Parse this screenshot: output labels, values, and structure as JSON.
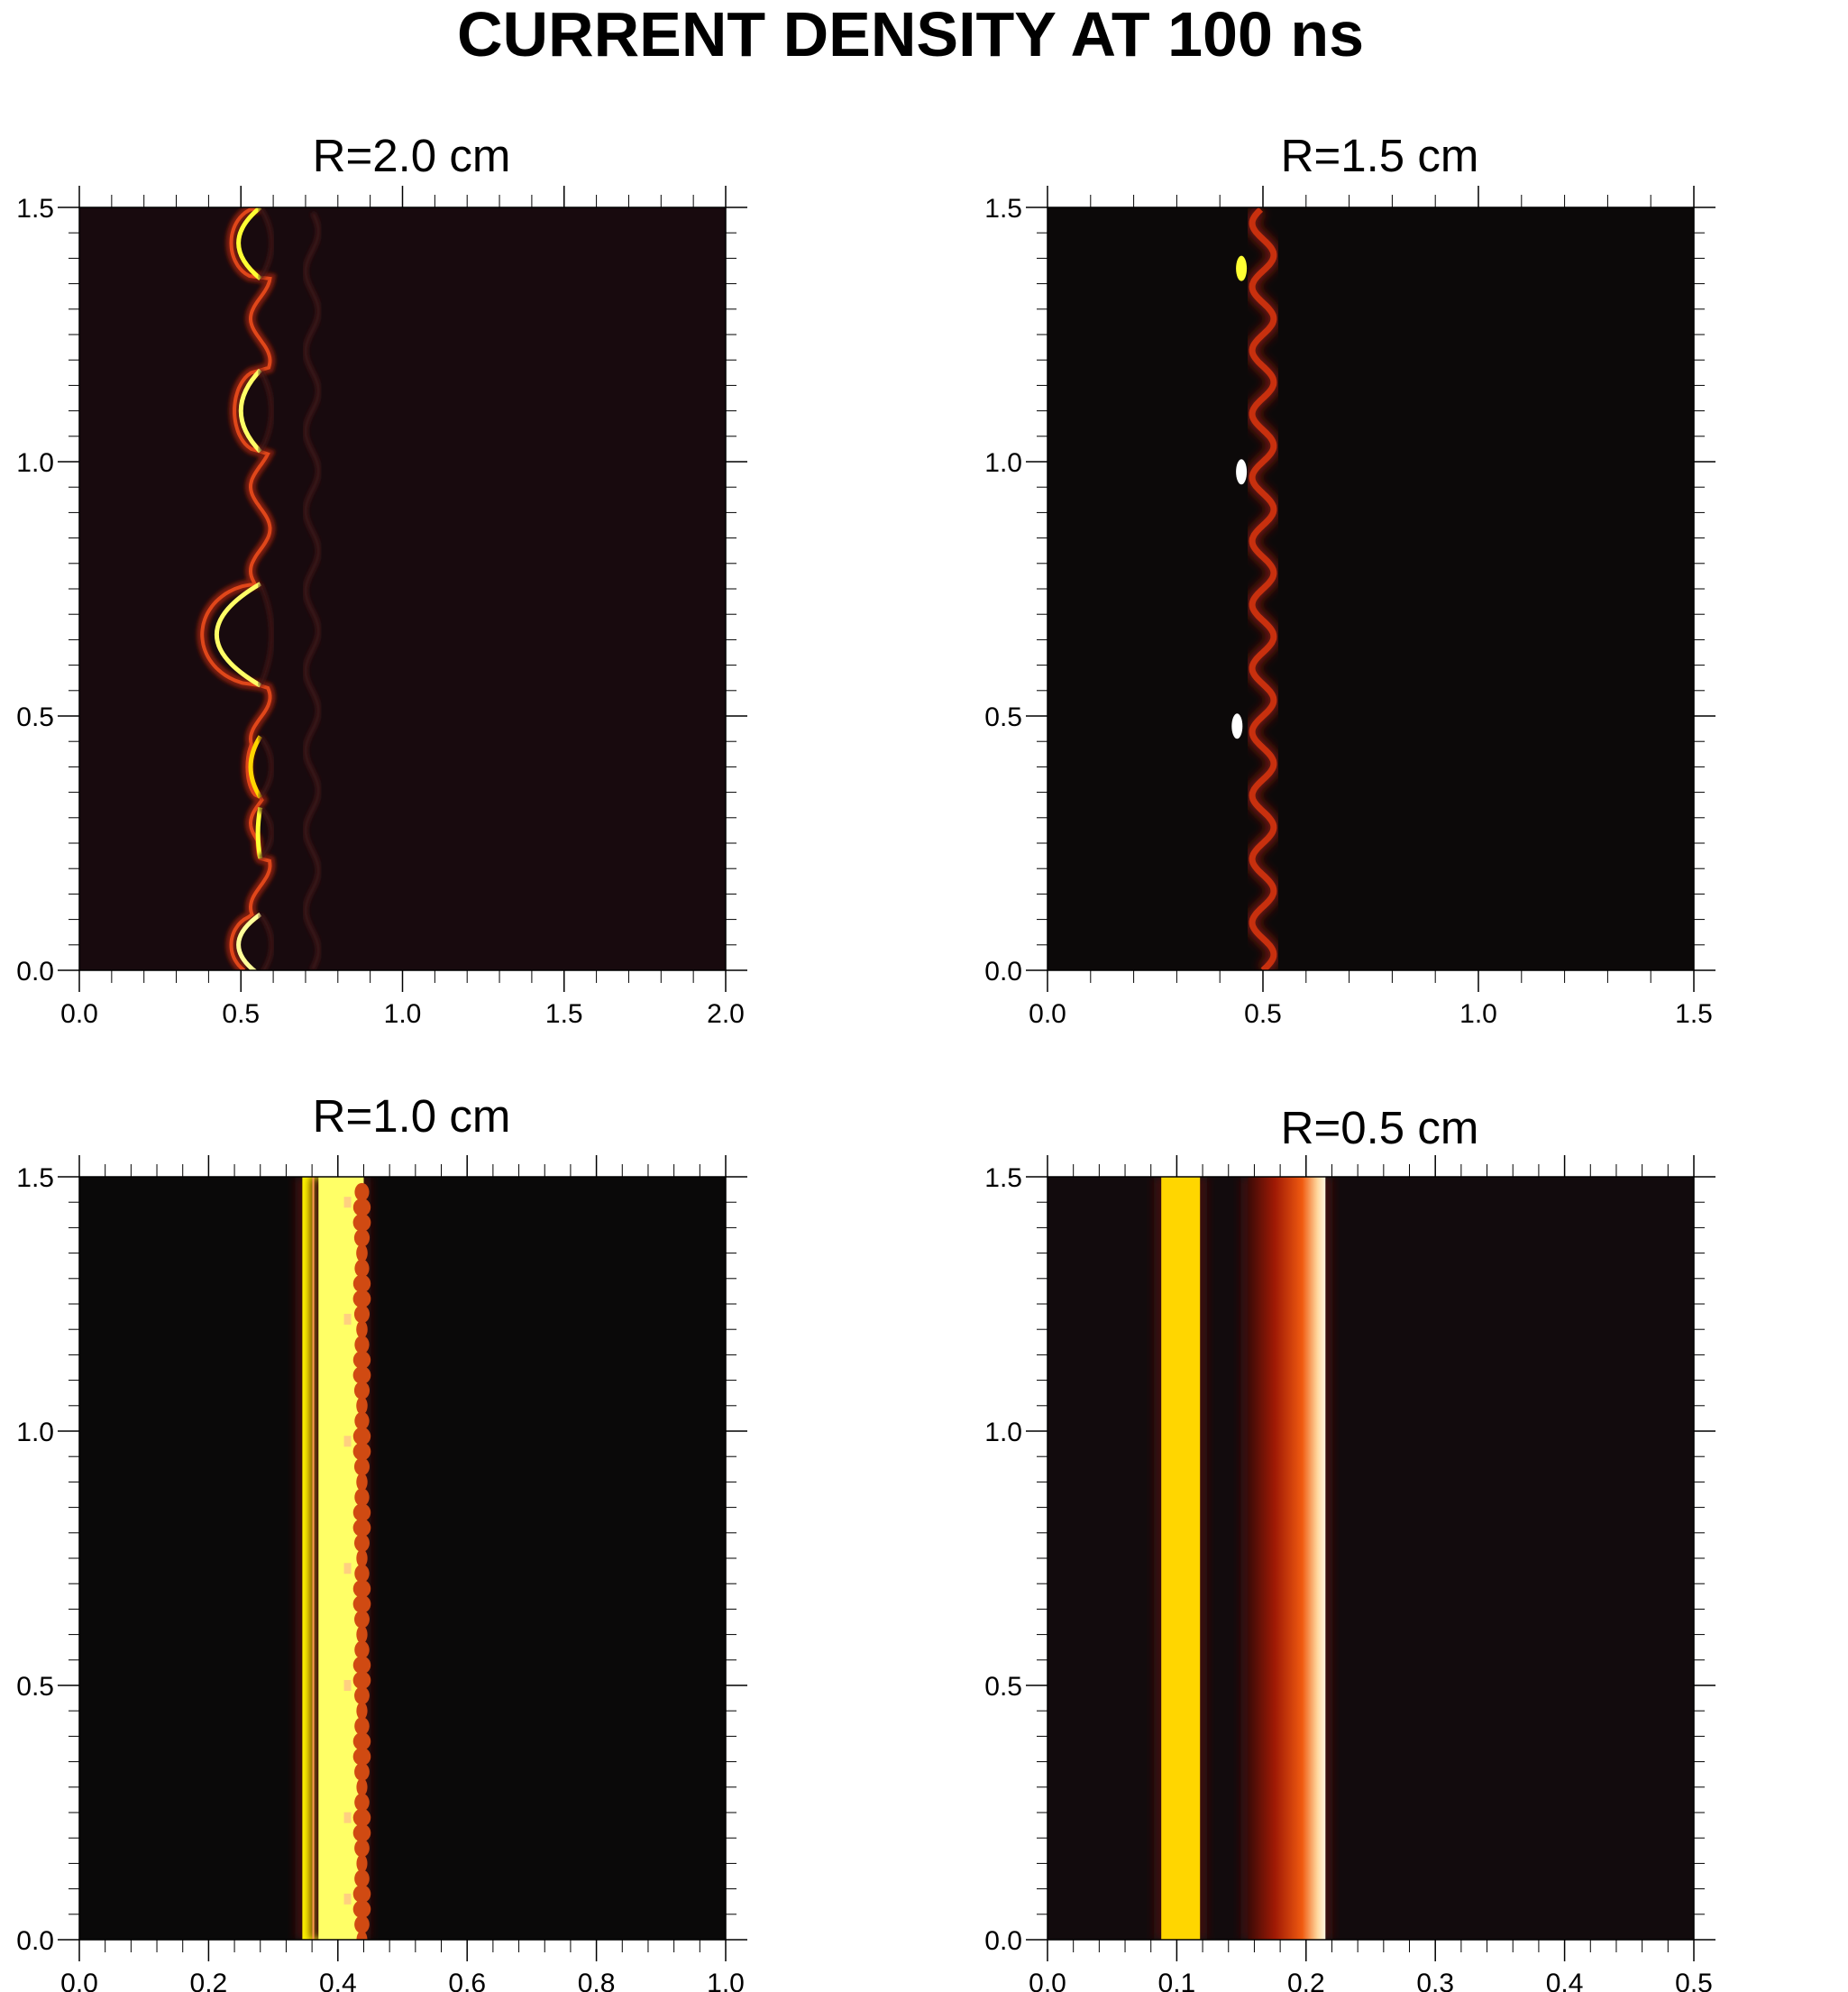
{
  "figure": {
    "title": "CURRENT DENSITY AT 100 ns"
  },
  "chart_data": [
    {
      "type": "heatmap",
      "title": "R=2.0 cm",
      "xlabel": "",
      "ylabel": "",
      "xlim": [
        0.0,
        2.0
      ],
      "ylim": [
        0.0,
        1.5
      ],
      "xticks": [
        "0.0",
        "0.5",
        "1.0",
        "1.5",
        "2.0"
      ],
      "yticks": [
        "0.0",
        "0.5",
        "1.0",
        "1.5"
      ],
      "background": "#180a0e",
      "colorscale": "hot (black - red - orange - white)",
      "features": {
        "kind": "wavy_front",
        "front_x": 0.56,
        "bulges": [
          {
            "y": 1.43,
            "x_min": 0.47,
            "height": 0.14,
            "intensity": 0.8
          },
          {
            "y": 1.1,
            "x_min": 0.48,
            "height": 0.16,
            "intensity": 0.85
          },
          {
            "y": 0.66,
            "x_min": 0.38,
            "height": 0.2,
            "intensity": 0.85
          },
          {
            "y": 0.4,
            "x_min": 0.52,
            "height": 0.12,
            "intensity": 0.7
          },
          {
            "y": 0.27,
            "x_min": 0.55,
            "height": 0.1,
            "intensity": 0.8
          },
          {
            "y": 0.05,
            "x_min": 0.47,
            "height": 0.12,
            "intensity": 0.9
          }
        ],
        "faint_x": 0.72
      }
    },
    {
      "type": "heatmap",
      "title": "R=1.5 cm",
      "xlabel": "",
      "ylabel": "",
      "xlim": [
        0.0,
        1.5
      ],
      "ylim": [
        0.0,
        1.5
      ],
      "xticks": [
        "0.0",
        "0.5",
        "1.0",
        "1.5"
      ],
      "yticks": [
        "0.0",
        "0.5",
        "1.0",
        "1.5"
      ],
      "background": "#0c0909",
      "colorscale": "hot (black - red - orange - white)",
      "features": {
        "kind": "wavy_line",
        "center_x": 0.5,
        "amplitude": 0.025,
        "period": 0.125,
        "hot_spots": [
          {
            "x": 0.45,
            "y": 0.98,
            "intensity": 1.0
          },
          {
            "x": 0.44,
            "y": 0.48,
            "intensity": 1.0
          },
          {
            "x": 0.45,
            "y": 1.38,
            "intensity": 0.8
          }
        ]
      }
    },
    {
      "type": "heatmap",
      "title": "R=1.0 cm",
      "xlabel": "",
      "ylabel": "",
      "xlim": [
        0.0,
        1.0
      ],
      "ylim": [
        0.0,
        1.5
      ],
      "xticks": [
        "0.0",
        "0.2",
        "0.4",
        "0.6",
        "0.8",
        "1.0"
      ],
      "yticks": [
        "0.0",
        "0.5",
        "1.0",
        "1.5"
      ],
      "background": "#0a0909",
      "colorscale": "hot (black - red - orange - white)",
      "features": {
        "kind": "bands",
        "bands": [
          {
            "x0": 0.345,
            "x1": 0.375,
            "intensity": 0.75
          },
          {
            "x0": 0.37,
            "x1": 0.44,
            "intensity": 0.85,
            "ripple": true
          }
        ],
        "hot_spots_x": 0.415,
        "hot_spots_y": [
          0.08,
          0.24,
          0.5,
          0.73,
          0.98,
          1.22,
          1.45
        ]
      }
    },
    {
      "type": "heatmap",
      "title": "R=0.5 cm",
      "xlabel": "",
      "ylabel": "",
      "xlim": [
        0.0,
        0.5
      ],
      "ylim": [
        0.0,
        1.5
      ],
      "xticks": [
        "0.0",
        "0.1",
        "0.2",
        "0.3",
        "0.4",
        "0.5"
      ],
      "yticks": [
        "0.0",
        "0.5",
        "1.0",
        "1.5"
      ],
      "background": "#120b0d",
      "colorscale": "hot (black - red - orange - white)",
      "features": {
        "kind": "bands",
        "bands": [
          {
            "x0": 0.088,
            "x1": 0.118,
            "intensity": 0.7
          },
          {
            "x0": 0.155,
            "x1": 0.215,
            "intensity": 1.0,
            "gradient": true
          }
        ]
      }
    }
  ]
}
